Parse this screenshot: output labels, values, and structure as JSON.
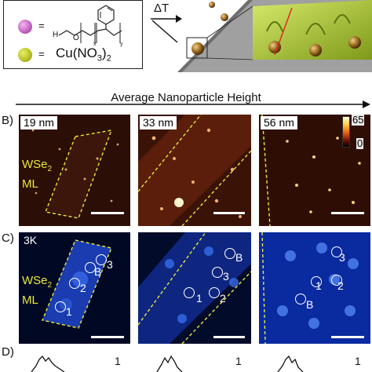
{
  "legend": {
    "ligand_eq": "=",
    "salt_eq": "=",
    "salt_label_prefix": "Cu(NO",
    "salt_label_sub1": "3",
    "salt_label_mid": ")",
    "salt_label_sub2": "2",
    "struct_h": "H",
    "struct_o": "O",
    "struct_x": "x",
    "struct_y": "y"
  },
  "schematic": {
    "heat_label": "ΔT"
  },
  "header": {
    "axis_label": "Average Nanoparticle Height"
  },
  "rows": {
    "b_label": "B)",
    "c_label": "C)",
    "d_label": "D)"
  },
  "panels_b": [
    {
      "tag": "19 nm"
    },
    {
      "tag": "33 nm"
    },
    {
      "tag": "56 nm"
    }
  ],
  "material": {
    "name": "WSe",
    "sub": "2",
    "layer": "ML"
  },
  "colorbar": {
    "max": "65",
    "min": "0"
  },
  "panels_c": [
    {
      "tag": "3K",
      "points": [
        "1",
        "2",
        "3",
        "B"
      ]
    },
    {
      "points": [
        "1",
        "2",
        "3",
        "B"
      ]
    },
    {
      "points": [
        "1",
        "2",
        "3",
        "B"
      ]
    }
  ],
  "row_d": {
    "norm_labels": [
      "1",
      "1",
      "1"
    ]
  }
}
